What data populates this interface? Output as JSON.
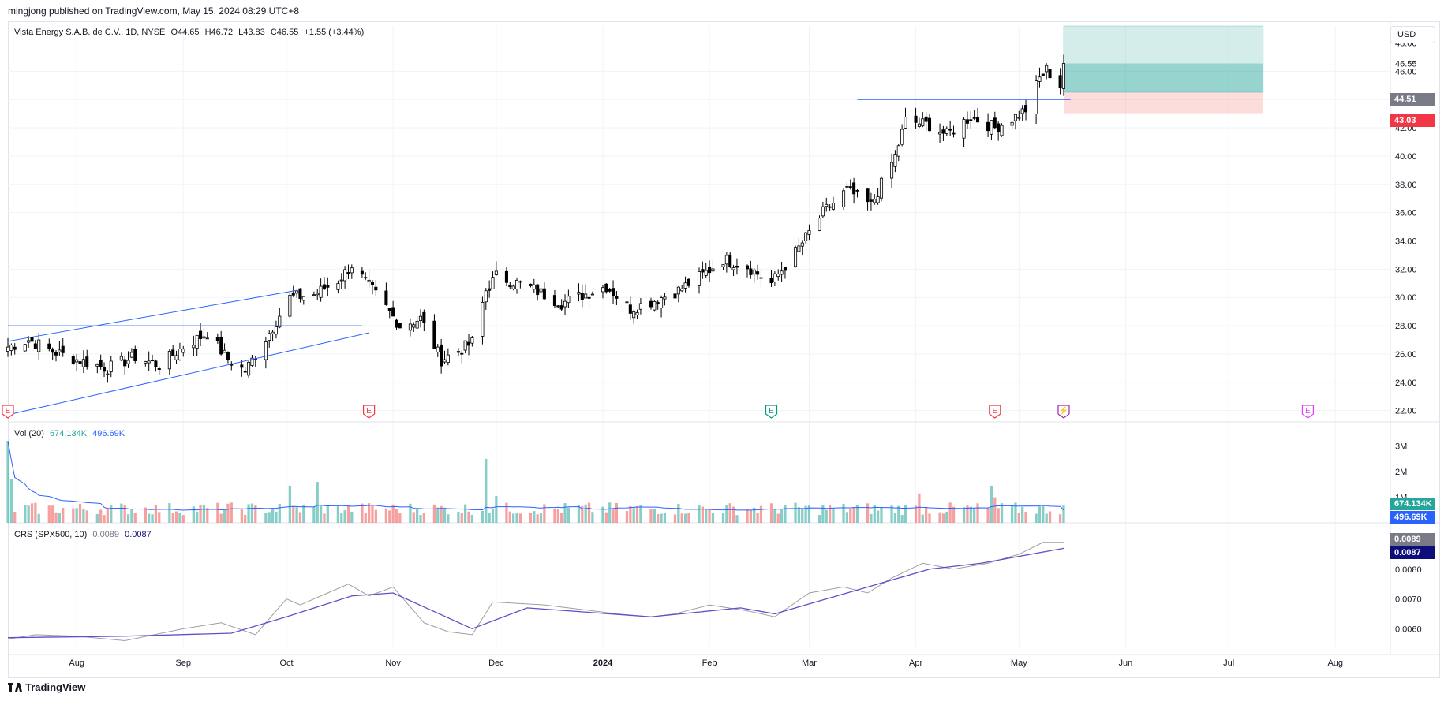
{
  "publisher": "mingjong published on TradingView.com, May 15, 2024 08:29 UTC+8",
  "brand": "TradingView",
  "currency": "USD",
  "legend": {
    "symbol": "Vista Energy S.A.B. de C.V., 1D, NYSE",
    "open": "O44.65",
    "high": "H46.72",
    "low": "L43.83",
    "close": "C46.55",
    "change": "+1.55 (+3.44%)"
  },
  "vol_legend": {
    "name": "Vol (20)",
    "value": "674.134K",
    "ma": "496.69K"
  },
  "crs_legend": {
    "name": "CRS (SPX500, 10)",
    "value": "0.0089",
    "ma": "0.0087"
  },
  "price_tags": {
    "last": "46.55",
    "mid": "44.51",
    "stop": "43.03"
  },
  "vol_tags": {
    "last": "674.134K",
    "ma": "496.69K"
  },
  "crs_tags": {
    "last": "0.0089",
    "ma": "0.0087"
  },
  "colors": {
    "up": "#26a69a",
    "down": "#ef5350",
    "candle_fill_up": "#ffffff",
    "candle_fill_down": "#000000",
    "line": "#2962ff",
    "crs": "#9e9e9e",
    "crs_ma": "#5b51c9",
    "target_zone": "#26a69a",
    "stop_zone": "#ef5350",
    "tag_gray": "#787b86",
    "tag_navy": "#0c0e7a"
  },
  "events": [
    {
      "date": "2023-07-12",
      "letter": "E",
      "color": "#f23645"
    },
    {
      "date": "2023-10-25",
      "letter": "E",
      "color": "#f23645"
    },
    {
      "date": "2024-02-19",
      "letter": "E",
      "color": "#089981"
    },
    {
      "date": "2024-04-24",
      "letter": "E",
      "color": "#f23645"
    },
    {
      "date": "2024-05-14",
      "letter": "⚡",
      "color": "#9c27b0"
    },
    {
      "date": "2024-07-24",
      "letter": "E",
      "color": "#e040fb"
    }
  ],
  "chart_data": [
    {
      "type": "candlestick",
      "title": "Vista Energy S.A.B. de C.V., 1D, NYSE",
      "y_ticks": [
        22.0,
        24.0,
        26.0,
        28.0,
        30.0,
        32.0,
        34.0,
        36.0,
        38.0,
        40.0,
        42.0,
        44.0,
        46.0,
        48.0
      ],
      "ylim": [
        21.2,
        49.2
      ],
      "x_ticks": [
        "Aug",
        "Sep",
        "Oct",
        "Nov",
        "Dec",
        "2024",
        "Feb",
        "Mar",
        "Apr",
        "May",
        "Jun",
        "Jul",
        "Aug"
      ],
      "x_tick_dates": [
        "2023-08-01",
        "2023-09-01",
        "2023-10-01",
        "2023-11-01",
        "2023-12-01",
        "2024-01-01",
        "2024-02-01",
        "2024-03-01",
        "2024-04-01",
        "2024-05-01",
        "2024-06-01",
        "2024-07-01",
        "2024-08-01"
      ],
      "xlim": [
        "2023-07-12",
        "2024-08-17"
      ],
      "anchors": [
        [
          "2023-07-12",
          26.5
        ],
        [
          "2023-07-18",
          27.0
        ],
        [
          "2023-07-25",
          26.2
        ],
        [
          "2023-08-01",
          25.6
        ],
        [
          "2023-08-10",
          25.0
        ],
        [
          "2023-08-18",
          25.8
        ],
        [
          "2023-08-25",
          25.2
        ],
        [
          "2023-09-01",
          26.5
        ],
        [
          "2023-09-08",
          27.5
        ],
        [
          "2023-09-14",
          25.6
        ],
        [
          "2023-09-19",
          24.8
        ],
        [
          "2023-09-26",
          27.5
        ],
        [
          "2023-10-02",
          30.0
        ],
        [
          "2023-10-09",
          30.2
        ],
        [
          "2023-10-16",
          31.2
        ],
        [
          "2023-10-20",
          32.3
        ],
        [
          "2023-10-27",
          30.2
        ],
        [
          "2023-11-03",
          28.0
        ],
        [
          "2023-11-09",
          28.5
        ],
        [
          "2023-11-15",
          25.6
        ],
        [
          "2023-11-22",
          26.5
        ],
        [
          "2023-11-24",
          26.8
        ],
        [
          "2023-11-28",
          30.5
        ],
        [
          "2023-12-01",
          31.5
        ],
        [
          "2023-12-10",
          30.8
        ],
        [
          "2023-12-20",
          29.6
        ],
        [
          "2024-01-02",
          30.8
        ],
        [
          "2024-01-09",
          29.2
        ],
        [
          "2024-01-16",
          29.8
        ],
        [
          "2024-01-23",
          30.5
        ],
        [
          "2024-01-30",
          31.6
        ],
        [
          "2024-02-05",
          32.7
        ],
        [
          "2024-02-12",
          32.2
        ],
        [
          "2024-02-19",
          31.0
        ],
        [
          "2024-02-27",
          33.5
        ],
        [
          "2024-03-05",
          36.0
        ],
        [
          "2024-03-12",
          37.6
        ],
        [
          "2024-03-19",
          36.5
        ],
        [
          "2024-03-26",
          40.0
        ],
        [
          "2024-03-29",
          42.5
        ],
        [
          "2024-04-05",
          42.2
        ],
        [
          "2024-04-10",
          41.5
        ],
        [
          "2024-04-17",
          42.8
        ],
        [
          "2024-04-24",
          42.0
        ],
        [
          "2024-04-30",
          42.8
        ],
        [
          "2024-05-03",
          43.3
        ],
        [
          "2024-05-07",
          45.5
        ],
        [
          "2024-05-09",
          46.1
        ],
        [
          "2024-05-13",
          45.0
        ],
        [
          "2024-05-14",
          46.55
        ]
      ],
      "lines": [
        {
          "from": [
            "2023-07-12",
            28.0
          ],
          "to": [
            "2023-10-23",
            28.0
          ]
        },
        {
          "from": [
            "2023-10-03",
            33.0
          ],
          "to": [
            "2024-03-04",
            33.0
          ]
        },
        {
          "from": [
            "2024-03-15",
            44.0
          ],
          "to": [
            "2024-05-16",
            44.0
          ]
        },
        {
          "from": [
            "2023-07-12",
            26.9
          ],
          "to": [
            "2023-10-04",
            30.5
          ]
        },
        {
          "from": [
            "2023-07-12",
            21.7
          ],
          "to": [
            "2023-10-25",
            27.5
          ]
        }
      ],
      "position": {
        "start": "2024-05-14",
        "end": "2024-07-11",
        "entry": 44.51,
        "target": 49.2,
        "stop": 43.03,
        "last": 46.55
      }
    },
    {
      "type": "bar",
      "title": "Vol (20)",
      "y_ticks": [
        "1M",
        "2M",
        "3M"
      ],
      "ylim": [
        0,
        3300000
      ],
      "last": 674134,
      "ma_last": 496690,
      "spikes": [
        [
          "2023-07-12",
          3200000
        ],
        [
          "2023-07-13",
          1700000
        ],
        [
          "2023-10-02",
          1450000
        ],
        [
          "2023-10-10",
          1600000
        ],
        [
          "2023-11-28",
          2500000
        ],
        [
          "2023-12-01",
          1050000
        ],
        [
          "2024-04-02",
          1150000
        ],
        [
          "2024-04-23",
          1450000
        ],
        [
          "2024-04-24",
          1000000
        ]
      ]
    },
    {
      "type": "line",
      "title": "CRS (SPX500, 10)",
      "y_ticks": [
        0.006,
        0.007,
        0.008
      ],
      "ylim": [
        0.0054,
        0.009
      ],
      "series": [
        {
          "points": [
            [
              "2023-07-12",
              0.00565
            ],
            [
              "2023-07-20",
              0.0058
            ],
            [
              "2023-08-01",
              0.00575
            ],
            [
              "2023-08-15",
              0.0056
            ],
            [
              "2023-09-01",
              0.006
            ],
            [
              "2023-09-12",
              0.0062
            ],
            [
              "2023-09-22",
              0.0058
            ],
            [
              "2023-10-01",
              0.007
            ],
            [
              "2023-10-05",
              0.0068
            ],
            [
              "2023-10-13",
              0.0072
            ],
            [
              "2023-10-19",
              0.0075
            ],
            [
              "2023-10-25",
              0.0071
            ],
            [
              "2023-11-01",
              0.0074
            ],
            [
              "2023-11-10",
              0.0062
            ],
            [
              "2023-11-17",
              0.0059
            ],
            [
              "2023-11-24",
              0.0058
            ],
            [
              "2023-11-30",
              0.0069
            ],
            [
              "2023-12-15",
              0.0068
            ],
            [
              "2024-01-05",
              0.0065
            ],
            [
              "2024-01-15",
              0.0064
            ],
            [
              "2024-01-22",
              0.0065
            ],
            [
              "2024-02-01",
              0.0068
            ],
            [
              "2024-02-12",
              0.0066
            ],
            [
              "2024-02-20",
              0.0064
            ],
            [
              "2024-03-01",
              0.0072
            ],
            [
              "2024-03-11",
              0.0074
            ],
            [
              "2024-03-18",
              0.0072
            ],
            [
              "2024-03-25",
              0.0077
            ],
            [
              "2024-04-03",
              0.0082
            ],
            [
              "2024-04-12",
              0.008
            ],
            [
              "2024-04-22",
              0.0082
            ],
            [
              "2024-05-01",
              0.0085
            ],
            [
              "2024-05-08",
              0.0089
            ],
            [
              "2024-05-14",
              0.0089
            ]
          ]
        },
        {
          "points": [
            [
              "2023-07-12",
              0.0057
            ],
            [
              "2023-08-15",
              0.00575
            ],
            [
              "2023-09-15",
              0.00585
            ],
            [
              "2023-10-01",
              0.0064
            ],
            [
              "2023-10-20",
              0.0071
            ],
            [
              "2023-11-01",
              0.0072
            ],
            [
              "2023-11-24",
              0.006
            ],
            [
              "2023-12-10",
              0.0067
            ],
            [
              "2024-01-15",
              0.0064
            ],
            [
              "2024-02-10",
              0.0067
            ],
            [
              "2024-02-20",
              0.0065
            ],
            [
              "2024-03-15",
              0.0073
            ],
            [
              "2024-04-05",
              0.008
            ],
            [
              "2024-04-20",
              0.0082
            ],
            [
              "2024-05-14",
              0.0087
            ]
          ]
        }
      ]
    }
  ]
}
